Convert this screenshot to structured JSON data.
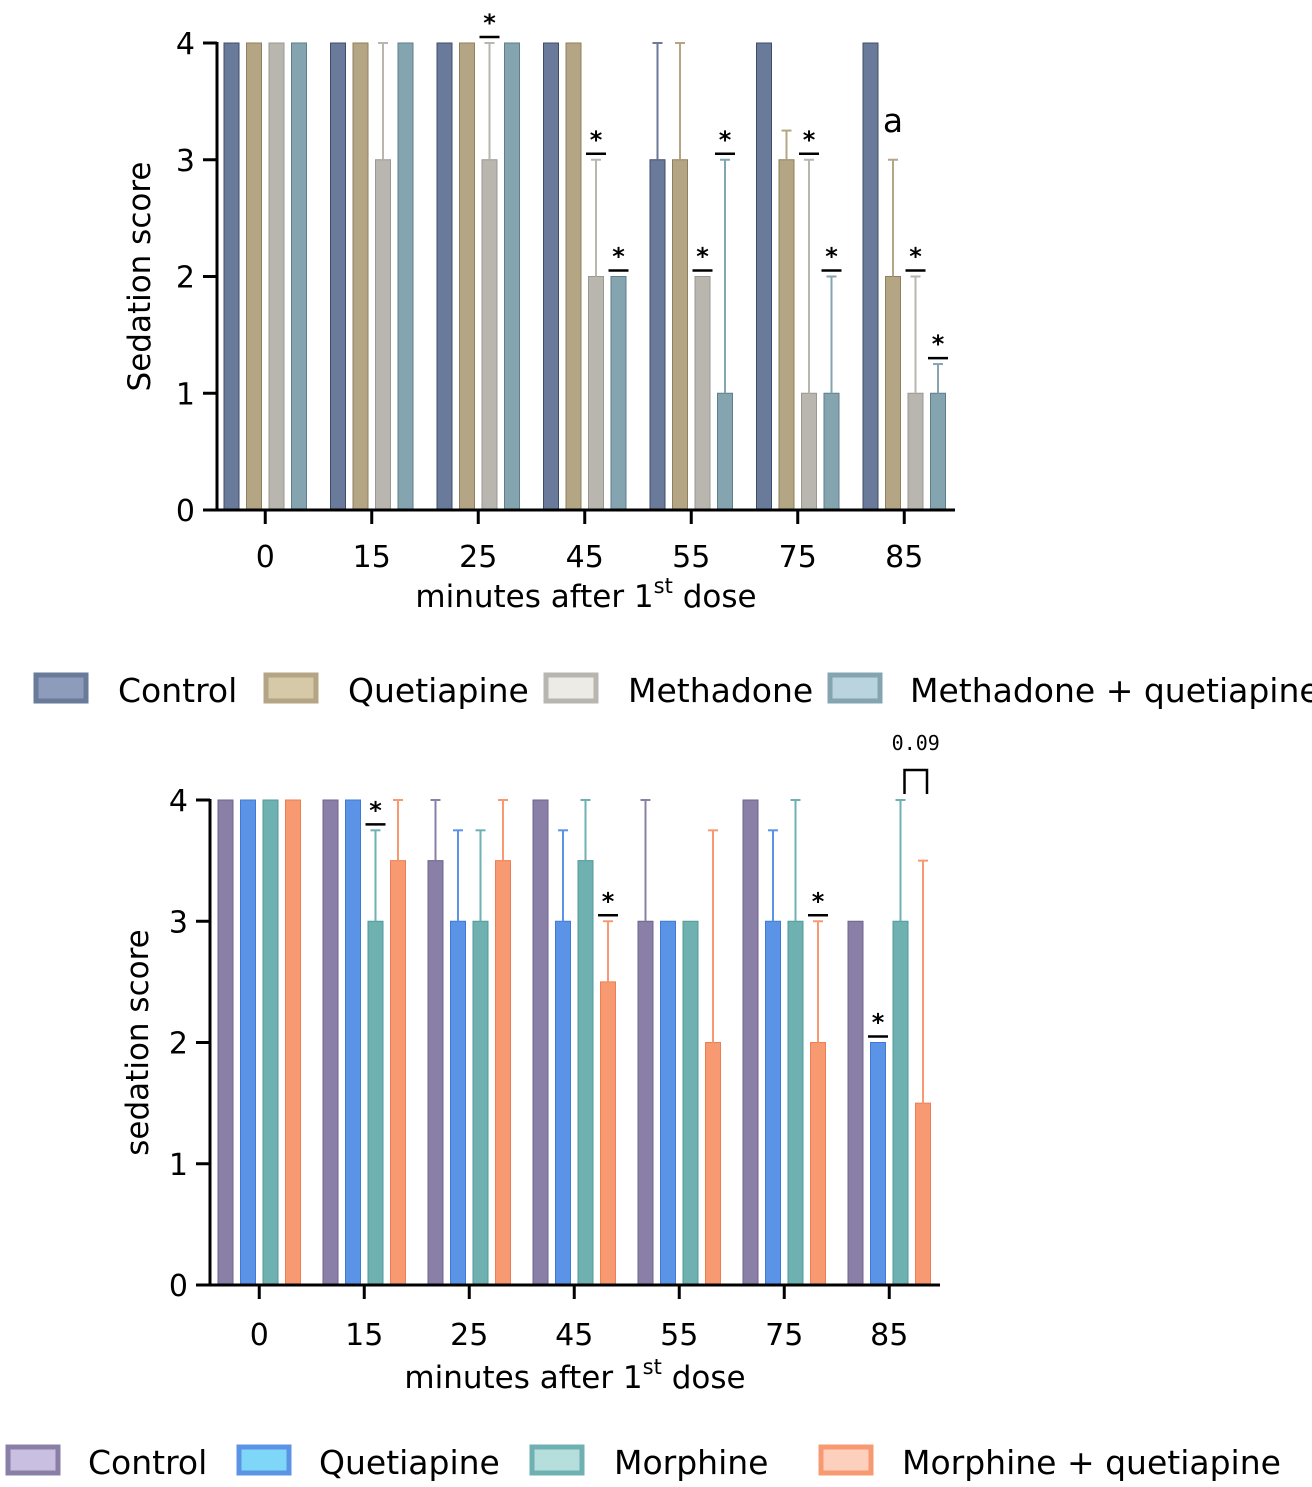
{
  "chart_data": [
    {
      "type": "bar",
      "xlabel": "minutes after 1",
      "xlabel_sup": "st",
      "xlabel_tail": " dose",
      "ylabel": "Sedation score",
      "ylim": [
        0,
        4
      ],
      "yticks": [
        "0",
        "1",
        "2",
        "3",
        "4"
      ],
      "categories": [
        "0",
        "15",
        "25",
        "45",
        "55",
        "75",
        "85"
      ],
      "legend_position": "bottom",
      "series": [
        {
          "name": "Control",
          "color": "#6a7a9a",
          "edge": "#3f4c68",
          "fill": "#8d9cbb",
          "values": [
            4,
            4,
            4,
            4,
            3,
            4,
            4
          ],
          "err_up": [
            0,
            0,
            0,
            0,
            1,
            0,
            0
          ]
        },
        {
          "name": "Quetiapine",
          "color": "#b4a584",
          "edge": "#8f7f5c",
          "fill": "#d6c9a8",
          "values": [
            4,
            4,
            4,
            4,
            3,
            3,
            2
          ],
          "err_up": [
            0,
            0,
            0,
            0,
            1,
            0.25,
            1
          ]
        },
        {
          "name": "Methadone",
          "color": "#b9b6b0",
          "edge": "#9a9792",
          "fill": "#ecebe6",
          "values": [
            4,
            3,
            3,
            2,
            2,
            1,
            1
          ],
          "err_up": [
            0,
            1,
            1,
            1,
            0,
            2,
            1
          ]
        },
        {
          "name": "Methadone + quetiapine",
          "color": "#84a4b0",
          "edge": "#5e7e8a",
          "fill": "#b9d4de",
          "values": [
            4,
            4,
            4,
            2,
            1,
            1,
            1
          ],
          "err_up": [
            0,
            0,
            0,
            0,
            2,
            1,
            0.25
          ]
        }
      ],
      "annotations": [
        {
          "text": "*",
          "category": "25",
          "series": 2
        },
        {
          "text": "*",
          "category": "45",
          "series": 2
        },
        {
          "text": "*",
          "category": "45",
          "series": 3
        },
        {
          "text": "*",
          "category": "55",
          "series": 2
        },
        {
          "text": "*",
          "category": "55",
          "series": 3
        },
        {
          "text": "*",
          "category": "75",
          "series": 2
        },
        {
          "text": "*",
          "category": "75",
          "series": 3
        },
        {
          "text": "a",
          "category": "85",
          "series": 1
        },
        {
          "text": "*",
          "category": "85",
          "series": 2
        },
        {
          "text": "*",
          "category": "85",
          "series": 3
        }
      ]
    },
    {
      "type": "bar",
      "xlabel": "minutes after 1",
      "xlabel_sup": "st",
      "xlabel_tail": " dose",
      "ylabel": "sedation score",
      "ylim": [
        0,
        4
      ],
      "yticks": [
        "0",
        "1",
        "2",
        "3",
        "4"
      ],
      "categories": [
        "0",
        "15",
        "25",
        "45",
        "55",
        "75",
        "85"
      ],
      "legend_position": "bottom",
      "series": [
        {
          "name": "Control",
          "color": "#8a7fa6",
          "edge": "#6d6390",
          "fill": "#c9bfe0",
          "values": [
            4,
            4,
            3.5,
            4,
            3,
            4,
            3
          ],
          "err_up": [
            0,
            0,
            0.5,
            0,
            1,
            0,
            0
          ]
        },
        {
          "name": "Quetiapine",
          "color": "#5b93e6",
          "edge": "#3f7ad8",
          "fill": "#7fd7f7",
          "values": [
            4,
            4,
            3,
            3,
            3,
            3,
            2
          ],
          "err_up": [
            0,
            0,
            0.75,
            0.75,
            0,
            0.75,
            0
          ]
        },
        {
          "name": "Morphine",
          "color": "#6fb0b0",
          "edge": "#4f9a9a",
          "fill": "#b6dedd",
          "values": [
            4,
            3,
            3,
            3.5,
            3,
            3,
            3
          ],
          "err_up": [
            0,
            0.75,
            0.75,
            0.5,
            0,
            1,
            1
          ]
        },
        {
          "name": "Morphine + quetiapine",
          "color": "#f79a72",
          "edge": "#ee7e52",
          "fill": "#fcd0bd",
          "values": [
            4,
            3.5,
            3.5,
            2.5,
            2,
            2,
            1.5
          ],
          "err_up": [
            0,
            0.5,
            0.5,
            0.5,
            1.75,
            1,
            2
          ]
        }
      ],
      "annotations": [
        {
          "text": "*",
          "category": "15",
          "series": 2
        },
        {
          "text": "*",
          "category": "45",
          "series": 3
        },
        {
          "text": "*",
          "category": "75",
          "series": 3
        },
        {
          "text": "*",
          "category": "85",
          "series": 1
        },
        {
          "text": "0.09",
          "category": "85",
          "series": 2,
          "bracket_to": 3
        }
      ]
    }
  ]
}
